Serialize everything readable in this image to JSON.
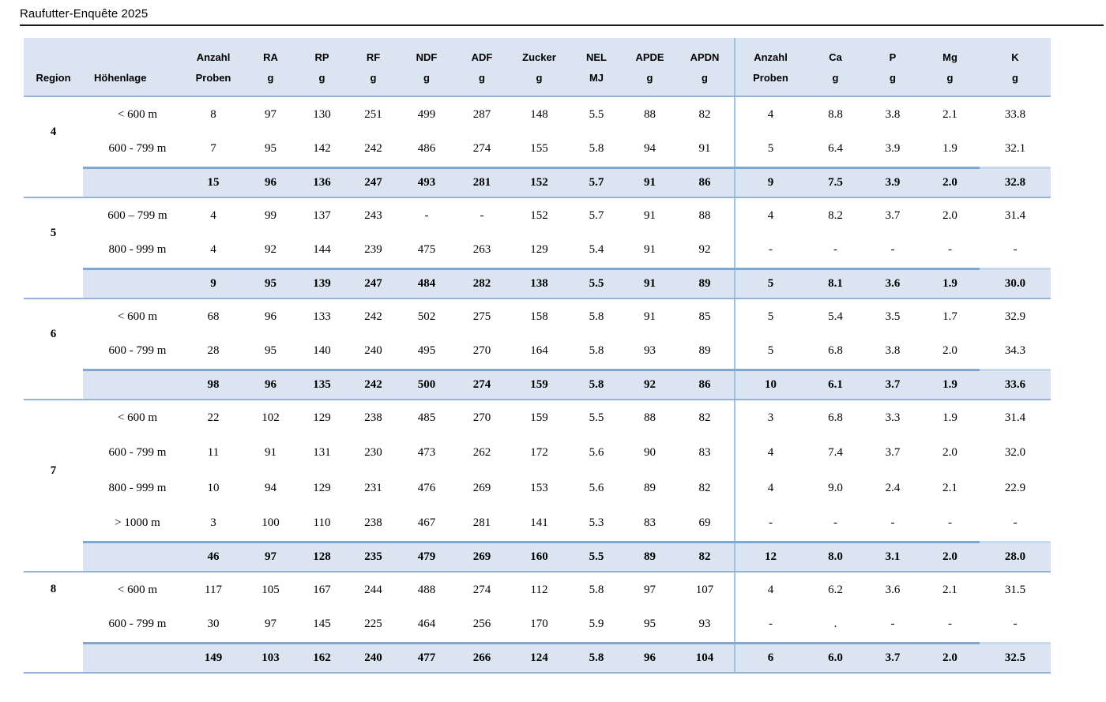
{
  "title": "Raufutter-Enquête 2025",
  "colors": {
    "band_bg": "#dbe5f1",
    "rule": "#95b3d7",
    "thick_rule": "#7fa8d4",
    "thick_rule_light": "#c5daee",
    "divider": "#9dc3e6",
    "title_rule": "#1a1a1a"
  },
  "table": {
    "headers": [
      {
        "line1": "",
        "line2": "Region"
      },
      {
        "line1": "",
        "line2": "Höhenlage"
      },
      {
        "line1": "Anzahl",
        "line2": "Proben"
      },
      {
        "line1": "RA",
        "line2": "g"
      },
      {
        "line1": "RP",
        "line2": "g"
      },
      {
        "line1": "RF",
        "line2": "g"
      },
      {
        "line1": "NDF",
        "line2": "g"
      },
      {
        "line1": "ADF",
        "line2": "g"
      },
      {
        "line1": "Zucker",
        "line2": "g"
      },
      {
        "line1": "NEL",
        "line2": "MJ"
      },
      {
        "line1": "APDE",
        "line2": "g"
      },
      {
        "line1": "APDN",
        "line2": "g"
      },
      {
        "line1": "Anzahl",
        "line2": "Proben"
      },
      {
        "line1": "Ca",
        "line2": "g"
      },
      {
        "line1": "P",
        "line2": "g"
      },
      {
        "line1": "Mg",
        "line2": "g"
      },
      {
        "line1": "K",
        "line2": "g"
      }
    ],
    "groups": [
      {
        "region": "4",
        "region_valign": "middle",
        "rows": [
          {
            "hoehenlage": "< 600 m",
            "values": [
              "8",
              "97",
              "130",
              "251",
              "499",
              "287",
              "148",
              "5.5",
              "88",
              "82",
              "4",
              "8.8",
              "3.8",
              "2.1",
              "33.8"
            ]
          },
          {
            "hoehenlage": "600 - 799 m",
            "values": [
              "7",
              "95",
              "142",
              "242",
              "486",
              "274",
              "155",
              "5.8",
              "94",
              "91",
              "5",
              "6.4",
              "3.9",
              "1.9",
              "32.1"
            ]
          }
        ],
        "total": [
          "15",
          "96",
          "136",
          "247",
          "493",
          "281",
          "152",
          "5.7",
          "91",
          "86",
          "9",
          "7.5",
          "3.9",
          "2.0",
          "32.8"
        ]
      },
      {
        "region": "5",
        "region_valign": "middle",
        "rows": [
          {
            "hoehenlage": "600 – 799 m",
            "values": [
              "4",
              "99",
              "137",
              "243",
              "-",
              "-",
              "152",
              "5.7",
              "91",
              "88",
              "4",
              "8.2",
              "3.7",
              "2.0",
              "31.4"
            ]
          },
          {
            "hoehenlage": "800 - 999 m",
            "values": [
              "4",
              "92",
              "144",
              "239",
              "475",
              "263",
              "129",
              "5.4",
              "91",
              "92",
              "-",
              "-",
              "-",
              "-",
              "-"
            ]
          }
        ],
        "total": [
          "9",
          "95",
          "139",
          "247",
          "484",
          "282",
          "138",
          "5.5",
          "91",
          "89",
          "5",
          "8.1",
          "3.6",
          "1.9",
          "30.0"
        ]
      },
      {
        "region": "6",
        "region_valign": "middle",
        "rows": [
          {
            "hoehenlage": "< 600 m",
            "values": [
              "68",
              "96",
              "133",
              "242",
              "502",
              "275",
              "158",
              "5.8",
              "91",
              "85",
              "5",
              "5.4",
              "3.5",
              "1.7",
              "32.9"
            ]
          },
          {
            "hoehenlage": "600 - 799 m",
            "values": [
              "28",
              "95",
              "140",
              "240",
              "495",
              "270",
              "164",
              "5.8",
              "93",
              "89",
              "5",
              "6.8",
              "3.8",
              "2.0",
              "34.3"
            ]
          }
        ],
        "total": [
          "98",
          "96",
          "135",
          "242",
          "500",
          "274",
          "159",
          "5.8",
          "92",
          "86",
          "10",
          "6.1",
          "3.7",
          "1.9",
          "33.6"
        ]
      },
      {
        "region": "7",
        "region_valign": "middle",
        "rows": [
          {
            "hoehenlage": "< 600 m",
            "values": [
              "22",
              "102",
              "129",
              "238",
              "485",
              "270",
              "159",
              "5.5",
              "88",
              "82",
              "3",
              "6.8",
              "3.3",
              "1.9",
              "31.4"
            ]
          },
          {
            "hoehenlage": "600 - 799 m",
            "values": [
              "11",
              "91",
              "131",
              "230",
              "473",
              "262",
              "172",
              "5.6",
              "90",
              "83",
              "4",
              "7.4",
              "3.7",
              "2.0",
              "32.0"
            ]
          },
          {
            "hoehenlage": "800 - 999 m",
            "values": [
              "10",
              "94",
              "129",
              "231",
              "476",
              "269",
              "153",
              "5.6",
              "89",
              "82",
              "4",
              "9.0",
              "2.4",
              "2.1",
              "22.9"
            ]
          },
          {
            "hoehenlage": "> 1000 m",
            "values": [
              "3",
              "100",
              "110",
              "238",
              "467",
              "281",
              "141",
              "5.3",
              "83",
              "69",
              "-",
              "-",
              "-",
              "-",
              "-"
            ]
          }
        ],
        "total": [
          "46",
          "97",
          "128",
          "235",
          "479",
          "269",
          "160",
          "5.5",
          "89",
          "82",
          "12",
          "8.0",
          "3.1",
          "2.0",
          "28.0"
        ]
      },
      {
        "region": "8",
        "region_valign": "top",
        "rows": [
          {
            "hoehenlage": "< 600 m",
            "values": [
              "117",
              "105",
              "167",
              "244",
              "488",
              "274",
              "112",
              "5.8",
              "97",
              "107",
              "4",
              "6.2",
              "3.6",
              "2.1",
              "31.5"
            ]
          },
          {
            "hoehenlage": "600 - 799 m",
            "values": [
              "30",
              "97",
              "145",
              "225",
              "464",
              "256",
              "170",
              "5.9",
              "95",
              "93",
              "-",
              ".",
              "-",
              "-",
              "-"
            ]
          }
        ],
        "total": [
          "149",
          "103",
          "162",
          "240",
          "477",
          "266",
          "124",
          "5.8",
          "96",
          "104",
          "6",
          "6.0",
          "3.7",
          "2.0",
          "32.5"
        ]
      }
    ]
  }
}
